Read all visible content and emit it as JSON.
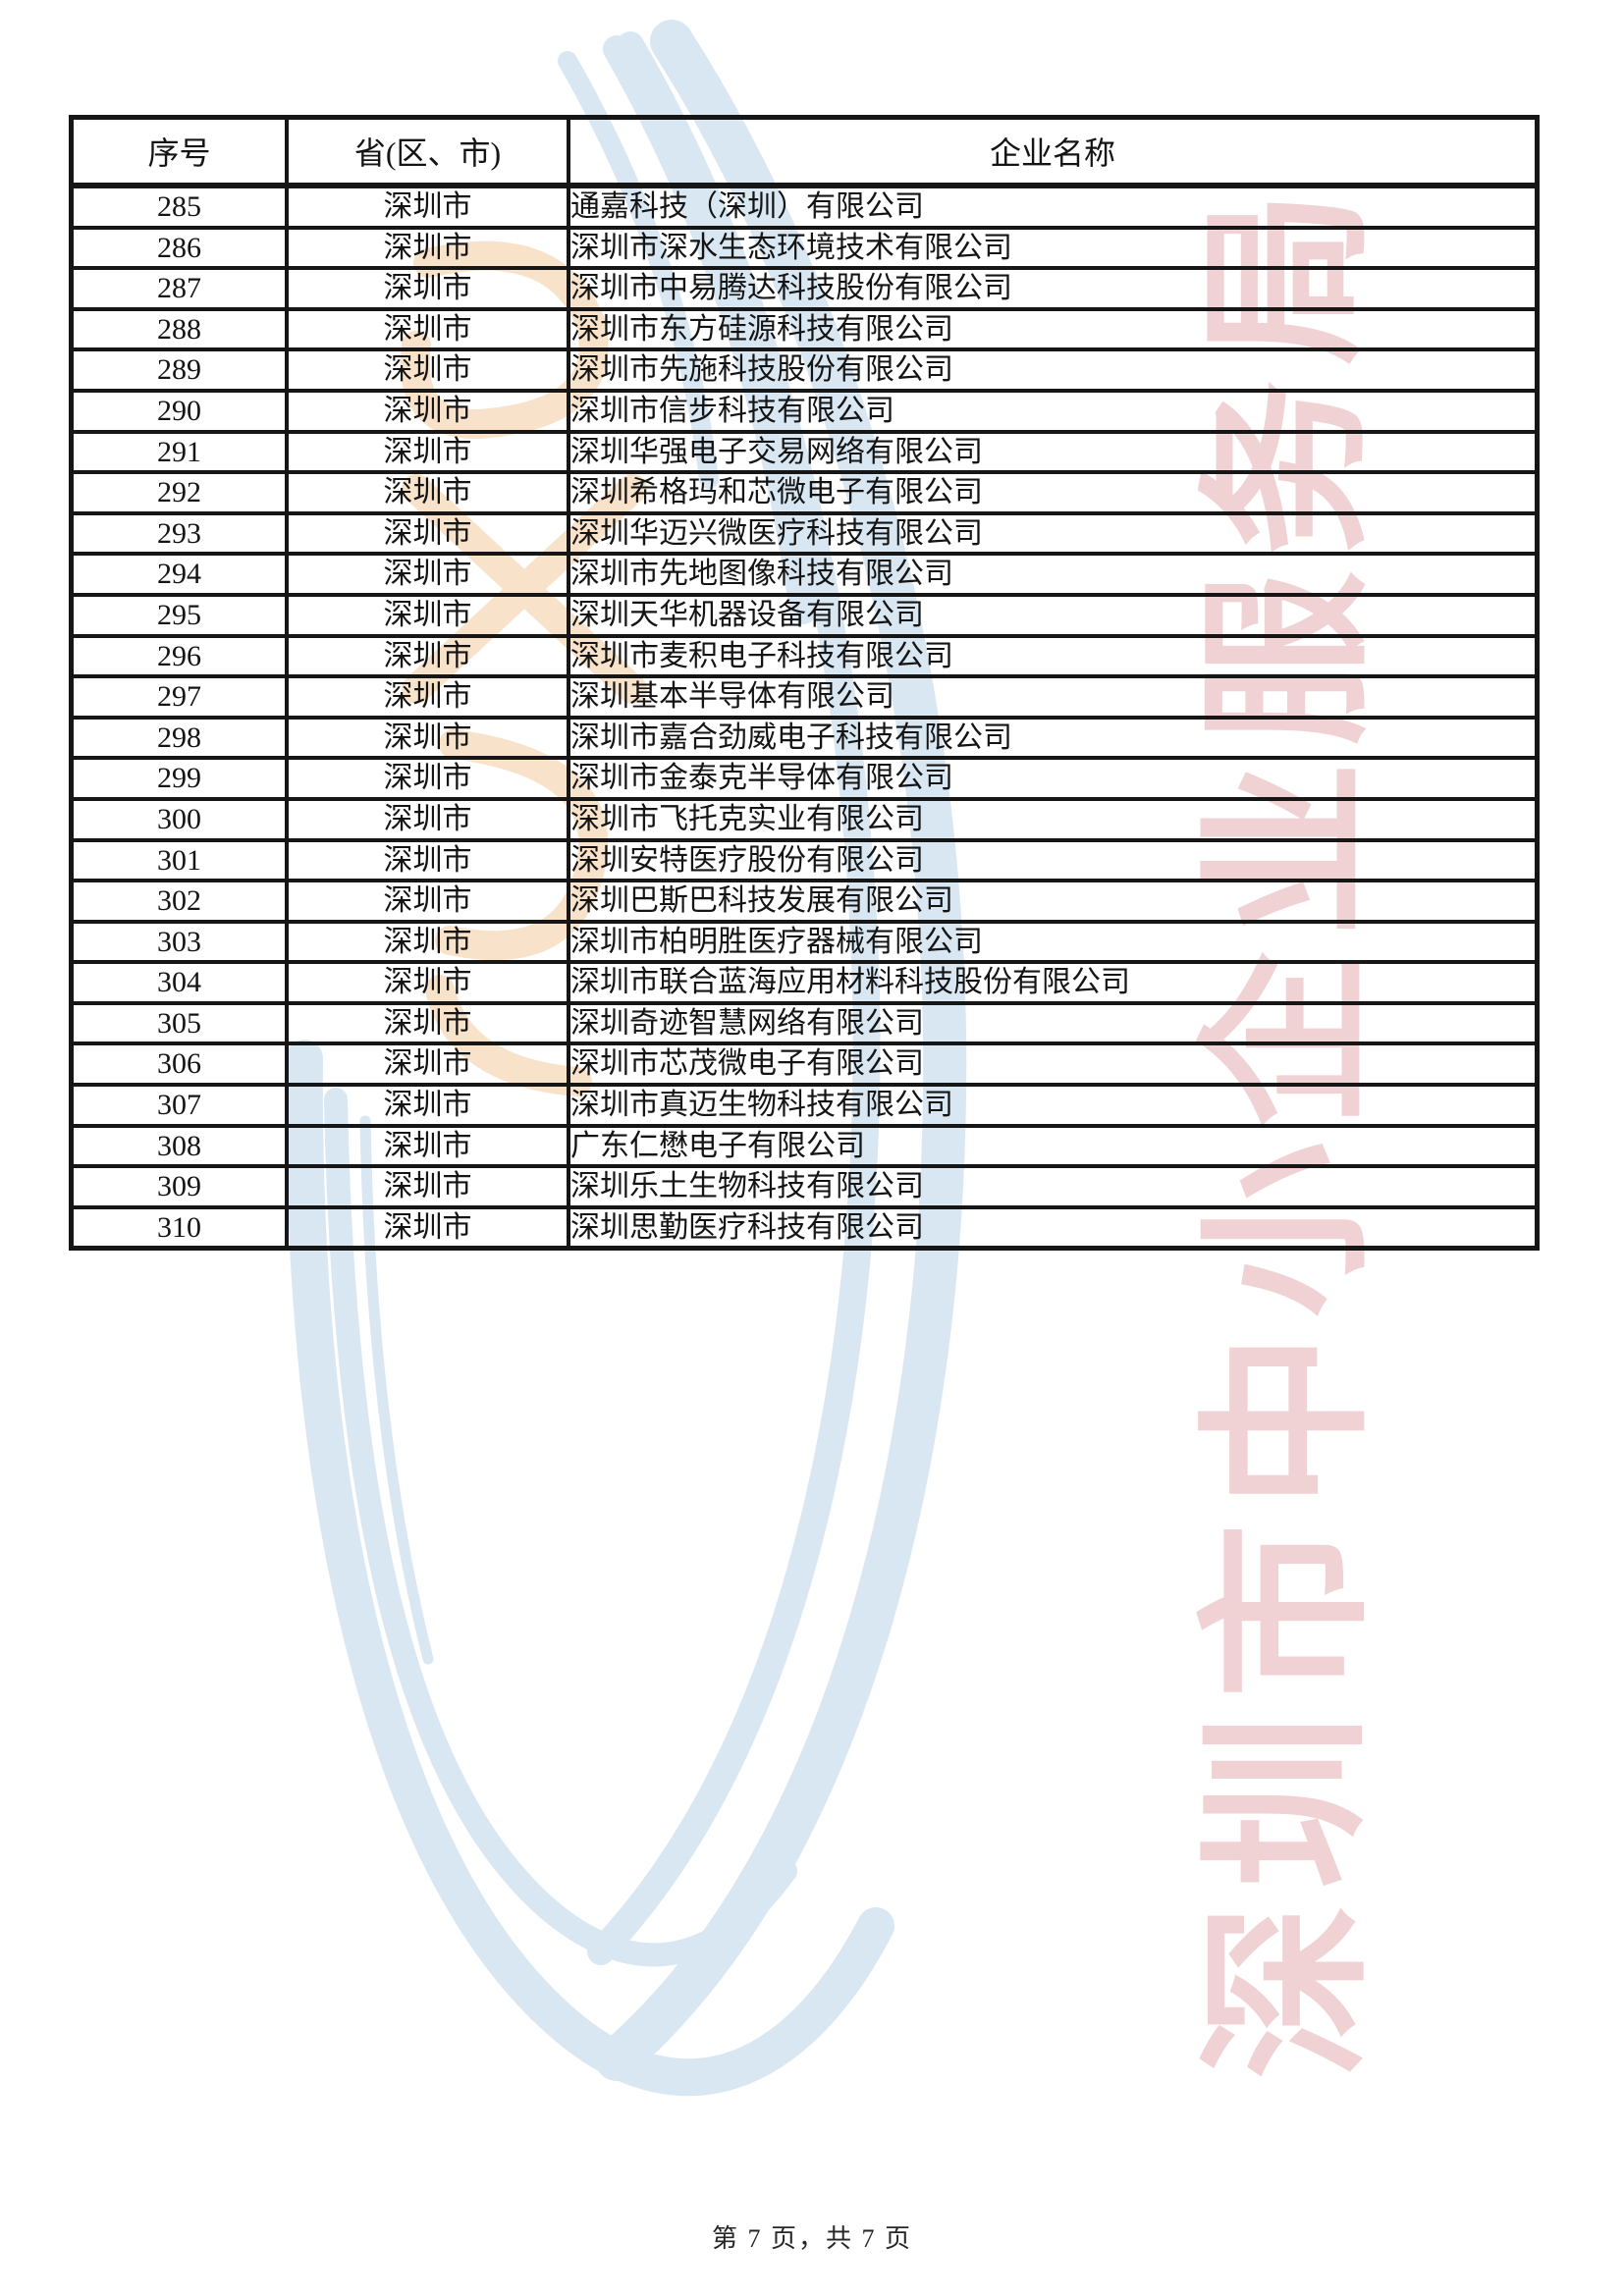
{
  "page": {
    "footer": "第 7 页，共 7 页",
    "watermark_text": "深圳市中小企业服务局",
    "colors": {
      "watermark_blue": "#d9e7f2",
      "watermark_orange": "#f8e2c9",
      "watermark_pink": "#f0d2d4",
      "border_black": "#161616"
    }
  },
  "table": {
    "headers": [
      "序号",
      "省(区、市)",
      "企业名称"
    ],
    "rows": [
      {
        "no": "285",
        "region": "深圳市",
        "company": "通嘉科技（深圳）有限公司"
      },
      {
        "no": "286",
        "region": "深圳市",
        "company": "深圳市深水生态环境技术有限公司"
      },
      {
        "no": "287",
        "region": "深圳市",
        "company": "深圳市中易腾达科技股份有限公司"
      },
      {
        "no": "288",
        "region": "深圳市",
        "company": "深圳市东方硅源科技有限公司"
      },
      {
        "no": "289",
        "region": "深圳市",
        "company": "深圳市先施科技股份有限公司"
      },
      {
        "no": "290",
        "region": "深圳市",
        "company": "深圳市信步科技有限公司"
      },
      {
        "no": "291",
        "region": "深圳市",
        "company": "深圳华强电子交易网络有限公司"
      },
      {
        "no": "292",
        "region": "深圳市",
        "company": "深圳希格玛和芯微电子有限公司"
      },
      {
        "no": "293",
        "region": "深圳市",
        "company": "深圳华迈兴微医疗科技有限公司"
      },
      {
        "no": "294",
        "region": "深圳市",
        "company": "深圳市先地图像科技有限公司"
      },
      {
        "no": "295",
        "region": "深圳市",
        "company": "深圳天华机器设备有限公司"
      },
      {
        "no": "296",
        "region": "深圳市",
        "company": "深圳市麦积电子科技有限公司"
      },
      {
        "no": "297",
        "region": "深圳市",
        "company": "深圳基本半导体有限公司"
      },
      {
        "no": "298",
        "region": "深圳市",
        "company": "深圳市嘉合劲威电子科技有限公司"
      },
      {
        "no": "299",
        "region": "深圳市",
        "company": "深圳市金泰克半导体有限公司"
      },
      {
        "no": "300",
        "region": "深圳市",
        "company": "深圳市飞托克实业有限公司"
      },
      {
        "no": "301",
        "region": "深圳市",
        "company": "深圳安特医疗股份有限公司"
      },
      {
        "no": "302",
        "region": "深圳市",
        "company": "深圳巴斯巴科技发展有限公司"
      },
      {
        "no": "303",
        "region": "深圳市",
        "company": "深圳市柏明胜医疗器械有限公司"
      },
      {
        "no": "304",
        "region": "深圳市",
        "company": "深圳市联合蓝海应用材料科技股份有限公司"
      },
      {
        "no": "305",
        "region": "深圳市",
        "company": "深圳奇迹智慧网络有限公司"
      },
      {
        "no": "306",
        "region": "深圳市",
        "company": "深圳市芯茂微电子有限公司"
      },
      {
        "no": "307",
        "region": "深圳市",
        "company": "深圳市真迈生物科技有限公司"
      },
      {
        "no": "308",
        "region": "深圳市",
        "company": "广东仁懋电子有限公司"
      },
      {
        "no": "309",
        "region": "深圳市",
        "company": "深圳乐土生物科技有限公司"
      },
      {
        "no": "310",
        "region": "深圳市",
        "company": "深圳思勤医疗科技有限公司"
      }
    ]
  }
}
